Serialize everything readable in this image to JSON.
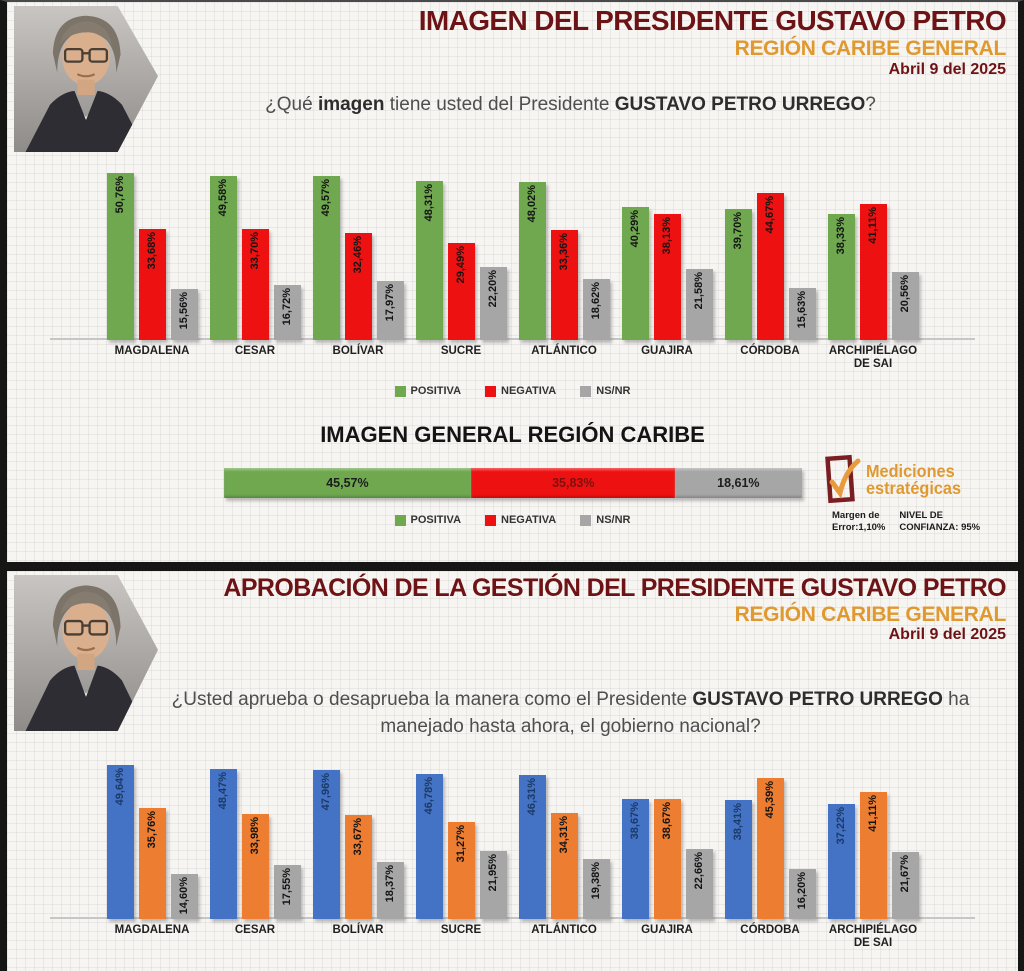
{
  "theme": {
    "maroon": "#6E1315",
    "orange": "#E0992F",
    "panel_bg": "#F7F5F2",
    "frame": "#161616",
    "question_text": "#4E4E4E"
  },
  "panel1": {
    "title": "IMAGEN DEL PRESIDENTE GUSTAVO PETRO",
    "subtitle": "REGIÓN CARIBE GENERAL",
    "date": "Abril 9 del 2025",
    "question": {
      "p1": "¿Qué ",
      "b1": "imagen",
      "p2": " tiene usted del Presidente ",
      "b2": "GUSTAVO PETRO URREGO",
      "p3": "?"
    },
    "general_title": "IMAGEN GENERAL REGIÓN CARIBE"
  },
  "panel2": {
    "title": "APROBACIÓN DE LA GESTIÓN  DEL PRESIDENTE GUSTAVO PETRO",
    "subtitle": "REGIÓN CARIBE GENERAL",
    "date": "Abril 9 del 2025",
    "question": {
      "p1": "¿Usted aprueba o desaprueba la manera como el Presidente ",
      "b1": "GUSTAVO PETRO URREGO",
      "p2": " ha manejado hasta ahora, el gobierno nacional?"
    }
  },
  "brand": {
    "name_line1": "Mediciones",
    "name_line2": "estratégicas",
    "margin_label": "Margen de",
    "margin_value": "Error:1,10%",
    "confidence_label": "NIVEL DE",
    "confidence_value": "CONFIANZA: 95%",
    "logo_outline_color": "#7A1E22",
    "logo_check_color": "#E89B3C"
  },
  "chart_data": [
    {
      "type": "bar",
      "title": "IMAGEN DEL PRESIDENTE GUSTAVO PETRO — REGIÓN CARIBE GENERAL",
      "categories": [
        "MAGDALENA",
        "CESAR",
        "BOLÍVAR",
        "SUCRE",
        "ATLÁNTICO",
        "GUAJIRA",
        "CÓRDOBA",
        "ARCHIPIÉLAGO DE SAI"
      ],
      "series": [
        {
          "name": "POSITIVA",
          "color": "#6FA84F",
          "values": [
            50.76,
            49.58,
            49.57,
            48.31,
            48.02,
            40.29,
            39.7,
            38.33
          ]
        },
        {
          "name": "NEGATIVA",
          "color": "#EE1111",
          "values": [
            33.68,
            33.7,
            32.46,
            29.49,
            33.36,
            38.13,
            44.67,
            41.11
          ]
        },
        {
          "name": "NS/NR",
          "color": "#A6A6A6",
          "values": [
            15.56,
            16.72,
            17.97,
            22.2,
            18.62,
            21.58,
            15.63,
            20.56
          ]
        }
      ],
      "ylim": [
        0,
        55
      ],
      "value_format": "comma-decimal-percent",
      "legend_position": "bottom"
    },
    {
      "type": "bar",
      "title": "IMAGEN GENERAL REGIÓN CARIBE",
      "subtype": "stacked-horizontal",
      "segments": [
        {
          "name": "POSITIVA",
          "color": "#6FA84F",
          "value": 45.57
        },
        {
          "name": "NEGATIVA",
          "color": "#EE1111",
          "value": 35.83,
          "label_color": "#7E100E"
        },
        {
          "name": "NS/NR",
          "color": "#A6A6A6",
          "value": 18.61
        }
      ],
      "value_format": "comma-decimal-percent",
      "legend_position": "bottom"
    },
    {
      "type": "bar",
      "title": "APROBACIÓN DE LA GESTIÓN DEL PRESIDENTE GUSTAVO PETRO — REGIÓN CARIBE GENERAL",
      "categories": [
        "MAGDALENA",
        "CESAR",
        "BOLÍVAR",
        "SUCRE",
        "ATLÁNTICO",
        "GUAJIRA",
        "CÓRDOBA",
        "ARCHIPIÉLAGO DE SAI"
      ],
      "series": [
        {
          "name": "serie-azul",
          "color": "#4472C4",
          "label_color": "#1B3A66",
          "values": [
            49.64,
            48.47,
            47.96,
            46.78,
            46.31,
            38.67,
            38.41,
            37.22
          ]
        },
        {
          "name": "serie-naranja",
          "color": "#ED7D31",
          "values": [
            35.76,
            33.98,
            33.67,
            31.27,
            34.31,
            38.67,
            45.39,
            41.11
          ]
        },
        {
          "name": "serie-gris",
          "color": "#A6A6A6",
          "values": [
            14.6,
            17.55,
            18.37,
            21.95,
            19.38,
            22.66,
            16.2,
            21.67
          ]
        }
      ],
      "ylim": [
        0,
        55
      ],
      "value_format": "comma-decimal-percent",
      "legend_position": "none"
    }
  ]
}
